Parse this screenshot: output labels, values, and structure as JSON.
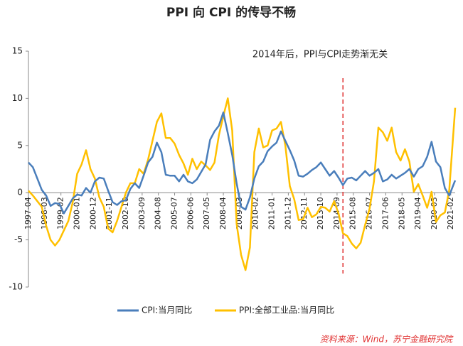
{
  "chart_data": {
    "type": "line",
    "title": "PPI 向 CPI 的传导不畅",
    "annotation": "2014年后，PPI与CPI走势渐无关",
    "source": "资料来源：Wind，苏宁金融研究院",
    "divider_x": "2015-01",
    "divider_color": "#e03030",
    "x": [
      "1997-04",
      "1997-07",
      "1997-10",
      "1998-01",
      "1998-04",
      "1998-07",
      "1998-10",
      "1999-01",
      "1999-04",
      "1999-07",
      "1999-10",
      "2000-01",
      "2000-04",
      "2000-07",
      "2000-10",
      "2001-01",
      "2001-04",
      "2001-07",
      "2001-10",
      "2002-01",
      "2002-04",
      "2002-07",
      "2002-10",
      "2003-01",
      "2003-04",
      "2003-07",
      "2003-10",
      "2004-01",
      "2004-04",
      "2004-07",
      "2004-10",
      "2005-01",
      "2005-04",
      "2005-07",
      "2005-10",
      "2006-01",
      "2006-04",
      "2006-07",
      "2006-10",
      "2007-01",
      "2007-04",
      "2007-07",
      "2007-10",
      "2008-01",
      "2008-04",
      "2008-07",
      "2008-10",
      "2009-01",
      "2009-04",
      "2009-07",
      "2009-10",
      "2010-01",
      "2010-04",
      "2010-07",
      "2010-10",
      "2011-01",
      "2011-04",
      "2011-07",
      "2011-10",
      "2012-01",
      "2012-04",
      "2012-07",
      "2012-10",
      "2013-01",
      "2013-04",
      "2013-07",
      "2013-10",
      "2014-01",
      "2014-04",
      "2014-07",
      "2014-10",
      "2015-01",
      "2015-04",
      "2015-07",
      "2015-10",
      "2016-01",
      "2016-04",
      "2016-07",
      "2016-10",
      "2017-01",
      "2017-04",
      "2017-07",
      "2017-10",
      "2018-01",
      "2018-04",
      "2018-07",
      "2018-10",
      "2019-01",
      "2019-04",
      "2019-07",
      "2019-10",
      "2020-01",
      "2020-04",
      "2020-07",
      "2020-10",
      "2021-01",
      "2021-04",
      "2021-05"
    ],
    "series": [
      {
        "name": "CPI:当月同比",
        "color": "#4a7ebb",
        "values": [
          3.2,
          2.7,
          1.5,
          0.3,
          -0.3,
          -1.4,
          -1.1,
          -1.2,
          -2.2,
          -1.4,
          -0.6,
          -0.2,
          -0.3,
          0.5,
          0.0,
          1.2,
          1.6,
          1.5,
          0.2,
          -1.0,
          -1.3,
          -0.9,
          -0.8,
          0.4,
          1.0,
          0.5,
          1.8,
          3.2,
          3.8,
          5.3,
          4.3,
          1.9,
          1.8,
          1.8,
          1.2,
          1.9,
          1.2,
          1.0,
          1.4,
          2.2,
          3.0,
          5.6,
          6.5,
          7.1,
          8.5,
          6.3,
          4.0,
          1.0,
          -1.5,
          -1.8,
          -0.5,
          1.5,
          2.8,
          3.3,
          4.4,
          4.9,
          5.3,
          6.5,
          5.5,
          4.5,
          3.4,
          1.8,
          1.7,
          2.0,
          2.4,
          2.7,
          3.2,
          2.5,
          1.8,
          2.3,
          1.6,
          0.8,
          1.5,
          1.6,
          1.3,
          1.8,
          2.3,
          1.8,
          2.1,
          2.5,
          1.2,
          1.4,
          1.9,
          1.5,
          1.8,
          2.1,
          2.5,
          1.7,
          2.5,
          2.8,
          3.8,
          5.4,
          3.3,
          2.7,
          0.5,
          -0.3,
          0.9,
          1.3
        ]
      },
      {
        "name": "PPI:全部工业品:当月同比",
        "color": "#ffc000",
        "values": [
          0.2,
          -0.3,
          -0.9,
          -1.5,
          -3.5,
          -5.0,
          -5.6,
          -5.0,
          -4.0,
          -3.0,
          -1.0,
          2.0,
          3.0,
          4.5,
          2.5,
          1.5,
          -0.5,
          -1.5,
          -3.8,
          -4.2,
          -3.0,
          -1.5,
          0.0,
          1.0,
          1.0,
          2.5,
          2.0,
          3.5,
          5.5,
          7.5,
          8.4,
          5.8,
          5.8,
          5.2,
          4.0,
          3.1,
          1.9,
          3.6,
          2.5,
          3.3,
          2.9,
          2.4,
          3.2,
          6.1,
          8.1,
          10.0,
          6.6,
          -3.3,
          -6.6,
          -8.2,
          -5.8,
          4.3,
          6.8,
          4.8,
          5.0,
          6.6,
          6.8,
          7.5,
          5.0,
          0.7,
          -0.7,
          -2.9,
          -2.8,
          -1.6,
          -2.6,
          -2.3,
          -1.5,
          -1.6,
          -2.0,
          -0.9,
          -2.2,
          -4.3,
          -4.6,
          -5.4,
          -5.9,
          -5.3,
          -3.4,
          -1.7,
          1.2,
          6.9,
          6.4,
          5.5,
          6.9,
          4.3,
          3.4,
          4.6,
          3.3,
          0.1,
          0.9,
          -0.3,
          -1.6,
          0.1,
          -3.1,
          -2.4,
          -2.1,
          0.3,
          6.8,
          9.0
        ]
      }
    ],
    "ylim": [
      -10,
      15
    ],
    "yticks": [
      -10,
      -5,
      0,
      5,
      10,
      15
    ],
    "xticks": [
      "1997-04",
      "1998-03",
      "1999-02",
      "2000-01",
      "2000-12",
      "2001-11",
      "2002-10",
      "2003-09",
      "2004-08",
      "2005-07",
      "2006-06",
      "2007-05",
      "2008-04",
      "2009-03",
      "2010-02",
      "2011-01",
      "2011-12",
      "2012-11",
      "2013-10",
      "2014-09",
      "2015-08",
      "2016-07",
      "2017-06",
      "2018-05",
      "2019-04",
      "2020-03",
      "2021-02"
    ],
    "xlim": [
      "1997-04",
      "2021-05"
    ],
    "grid": false,
    "legend": "bottom"
  }
}
